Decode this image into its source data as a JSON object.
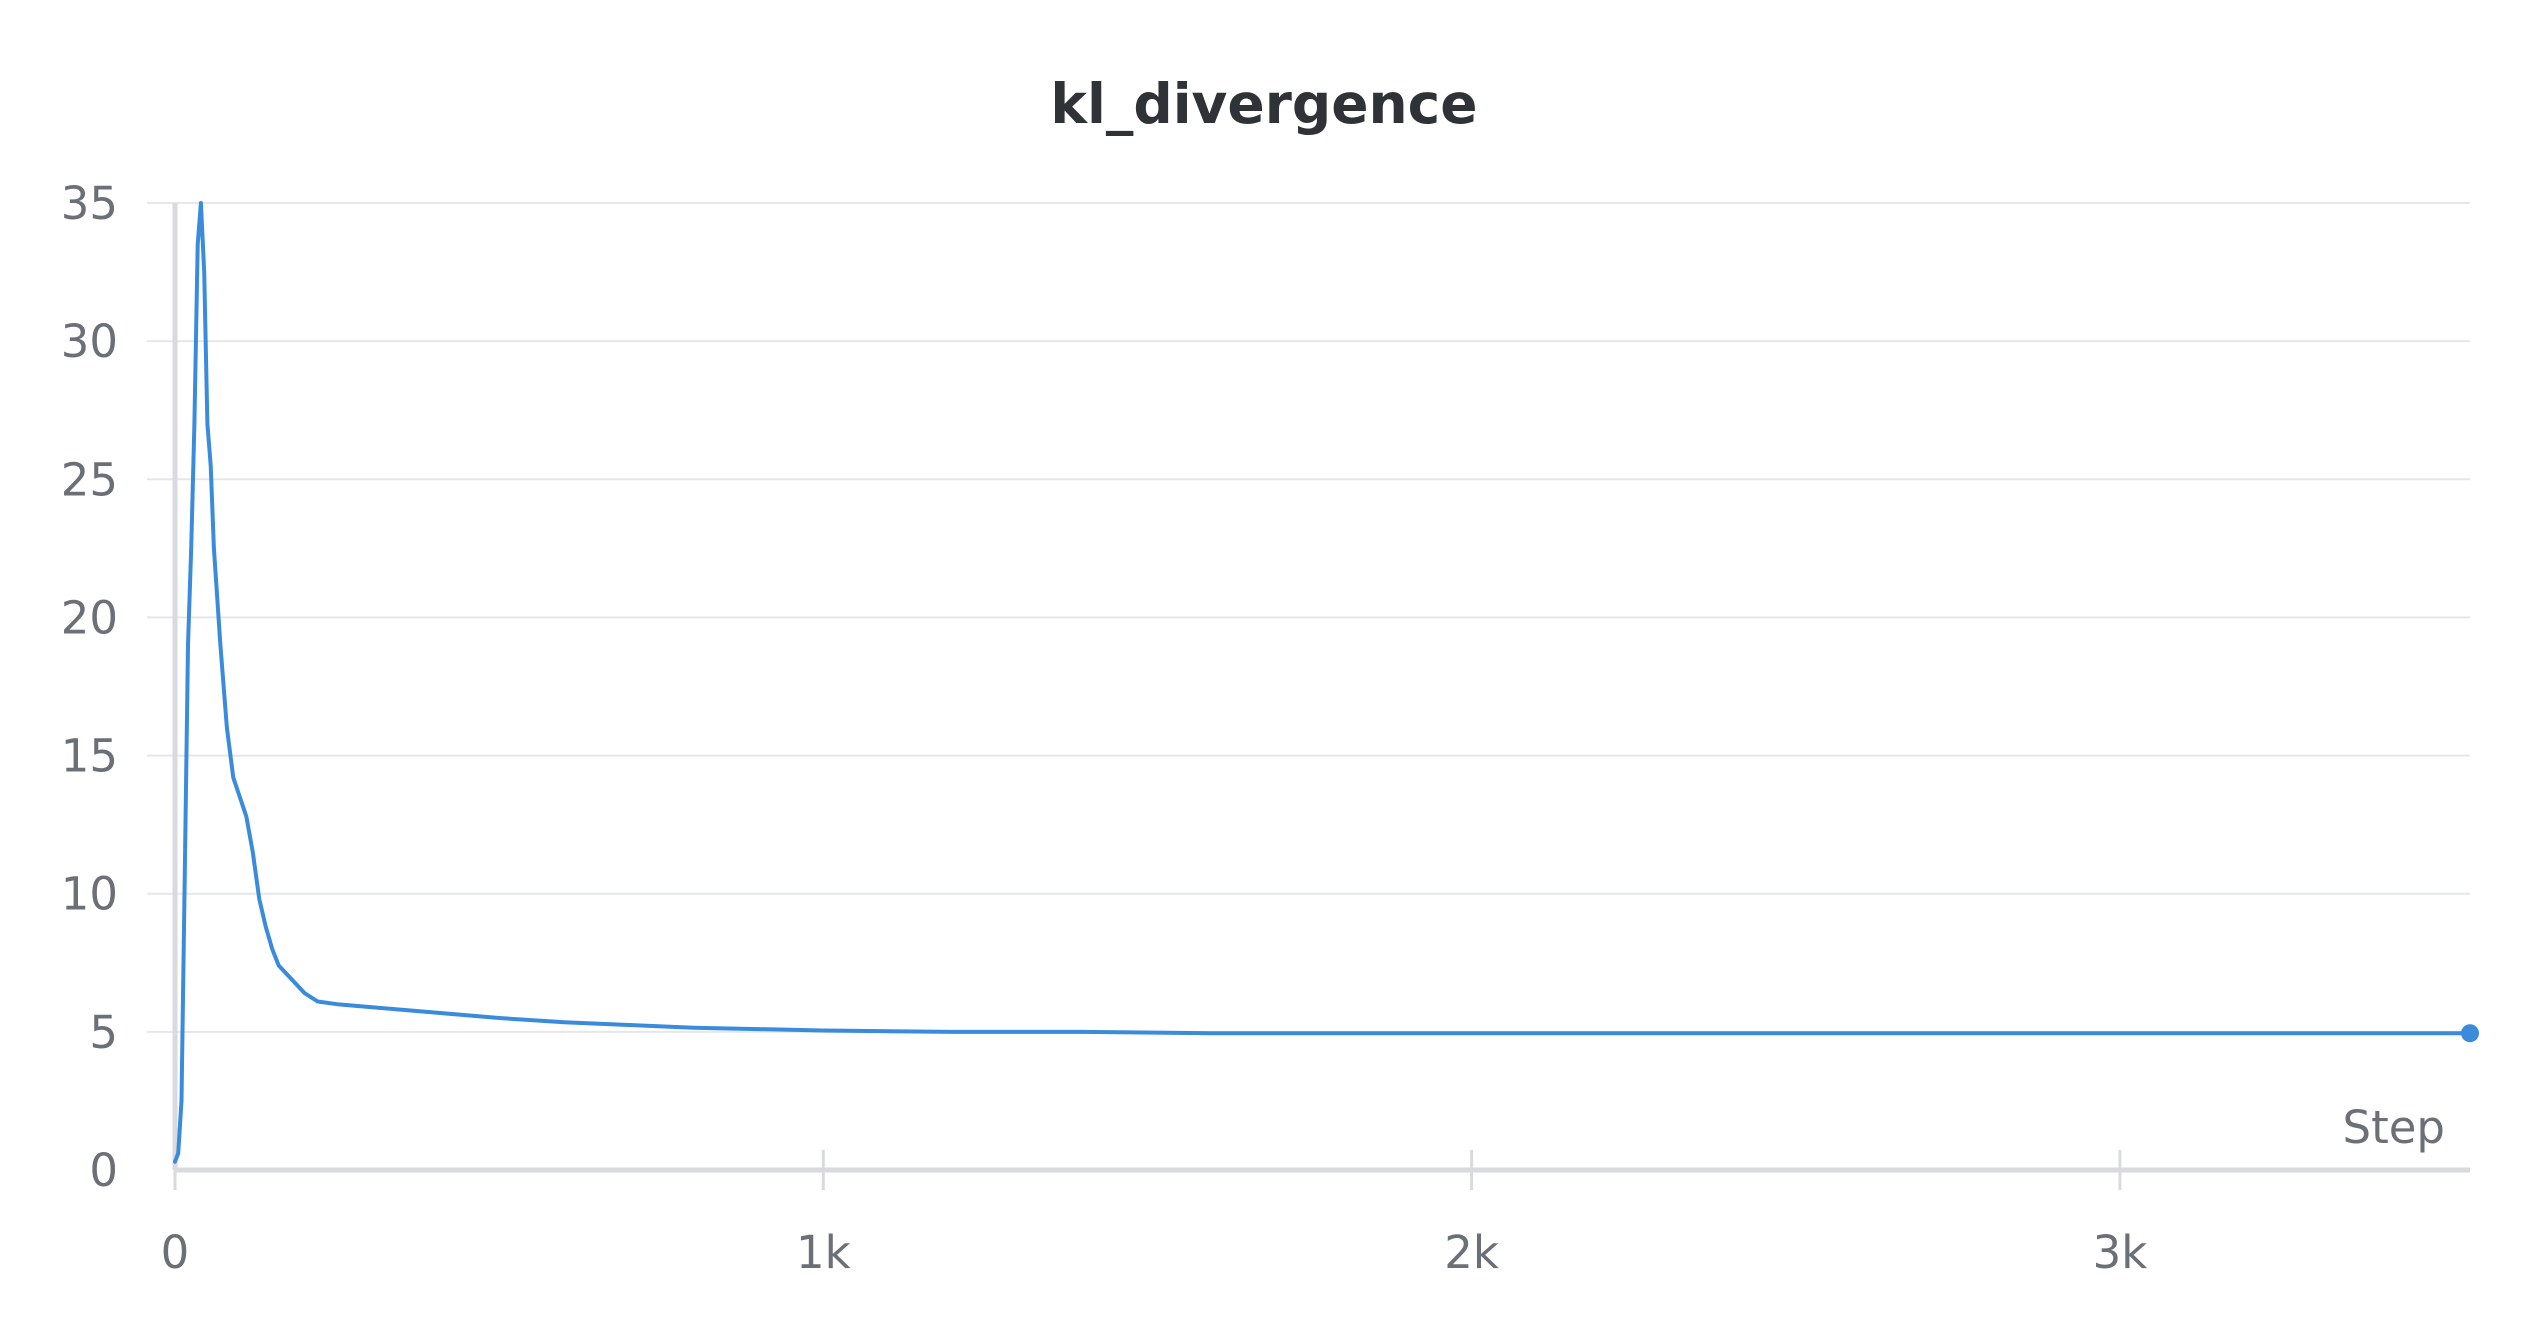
{
  "chart_data": {
    "type": "line",
    "title": "kl_divergence",
    "xlabel": "Step",
    "ylabel": "",
    "xlim": [
      0,
      3540
    ],
    "ylim": [
      0,
      35
    ],
    "x_ticks": [
      {
        "value": 0,
        "label": "0"
      },
      {
        "value": 1000,
        "label": "1k"
      },
      {
        "value": 2000,
        "label": "2k"
      },
      {
        "value": 3000,
        "label": "3k"
      }
    ],
    "y_ticks": [
      {
        "value": 0,
        "label": "0"
      },
      {
        "value": 5,
        "label": "5"
      },
      {
        "value": 10,
        "label": "10"
      },
      {
        "value": 15,
        "label": "15"
      },
      {
        "value": 20,
        "label": "20"
      },
      {
        "value": 25,
        "label": "25"
      },
      {
        "value": 30,
        "label": "30"
      },
      {
        "value": 35,
        "label": "35"
      }
    ],
    "grid": true,
    "legend": "none",
    "series": [
      {
        "color": "#3a8bdc",
        "x": [
          0,
          5,
          10,
          15,
          20,
          25,
          30,
          35,
          40,
          45,
          50,
          55,
          60,
          70,
          80,
          90,
          100,
          110,
          120,
          130,
          140,
          150,
          160,
          180,
          200,
          220,
          250,
          300,
          350,
          400,
          450,
          500,
          600,
          700,
          800,
          900,
          1000,
          1200,
          1400,
          1600,
          1800,
          2000,
          2200,
          2400,
          2600,
          2800,
          3000,
          3200,
          3400,
          3540
        ],
        "y": [
          0.3,
          0.6,
          2.5,
          10.5,
          19.0,
          22.5,
          27.0,
          33.5,
          35.0,
          32.5,
          27.0,
          25.5,
          22.5,
          19.0,
          16.0,
          14.2,
          13.5,
          12.8,
          11.5,
          9.8,
          8.8,
          8.0,
          7.4,
          6.9,
          6.4,
          6.1,
          6.0,
          5.9,
          5.8,
          5.7,
          5.6,
          5.5,
          5.35,
          5.25,
          5.15,
          5.1,
          5.05,
          5.0,
          5.0,
          4.95,
          4.95,
          4.95,
          4.95,
          4.95,
          4.95,
          4.95,
          4.95,
          4.95,
          4.95,
          4.95
        ]
      }
    ]
  }
}
